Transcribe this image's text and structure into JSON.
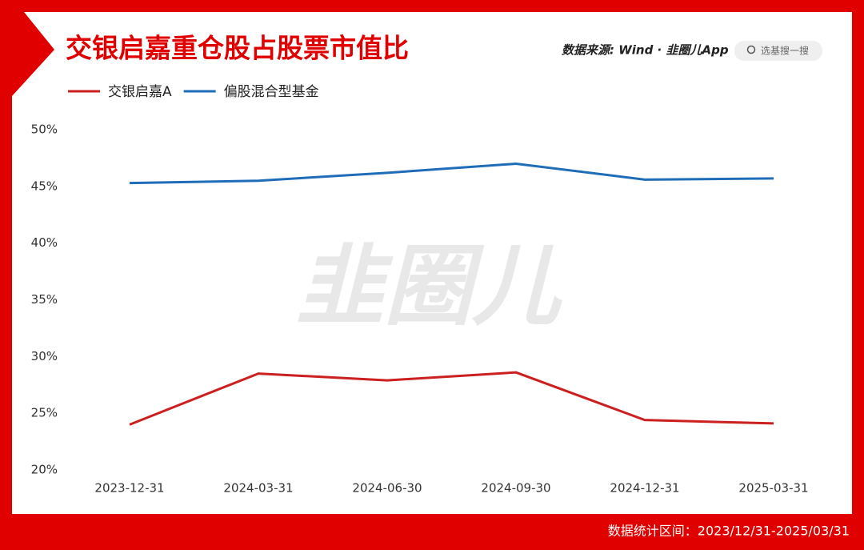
{
  "chart_data": {
    "type": "line",
    "title": "交银启嘉重仓股占股票市值比",
    "source": "数据来源: Wind · 韭圈儿App",
    "search": "选基搜一搜",
    "watermark": "韭圈儿",
    "footer": "数据统计区间：2023/12/31-2025/03/31",
    "categories": [
      "2023-12-31",
      "2024-03-31",
      "2024-06-30",
      "2024-09-30",
      "2024-12-31",
      "2025-03-31"
    ],
    "series": [
      {
        "name": "交银启嘉A",
        "color": "#cc1f1f",
        "values": [
          24.0,
          28.5,
          27.9,
          28.6,
          24.4,
          24.1
        ]
      },
      {
        "name": "偏股混合型基金",
        "color": "#1f6db8",
        "values": [
          45.3,
          45.5,
          46.2,
          47.0,
          45.6,
          45.7
        ]
      }
    ],
    "ylim": [
      20,
      50
    ],
    "yticks": [
      {
        "value": 20,
        "label": "20%"
      },
      {
        "value": 25,
        "label": "25%"
      },
      {
        "value": 30,
        "label": "30%"
      },
      {
        "value": 35,
        "label": "35%"
      },
      {
        "value": 40,
        "label": "40%"
      },
      {
        "value": 45,
        "label": "45%"
      },
      {
        "value": 50,
        "label": "50%"
      }
    ],
    "grid": false
  }
}
